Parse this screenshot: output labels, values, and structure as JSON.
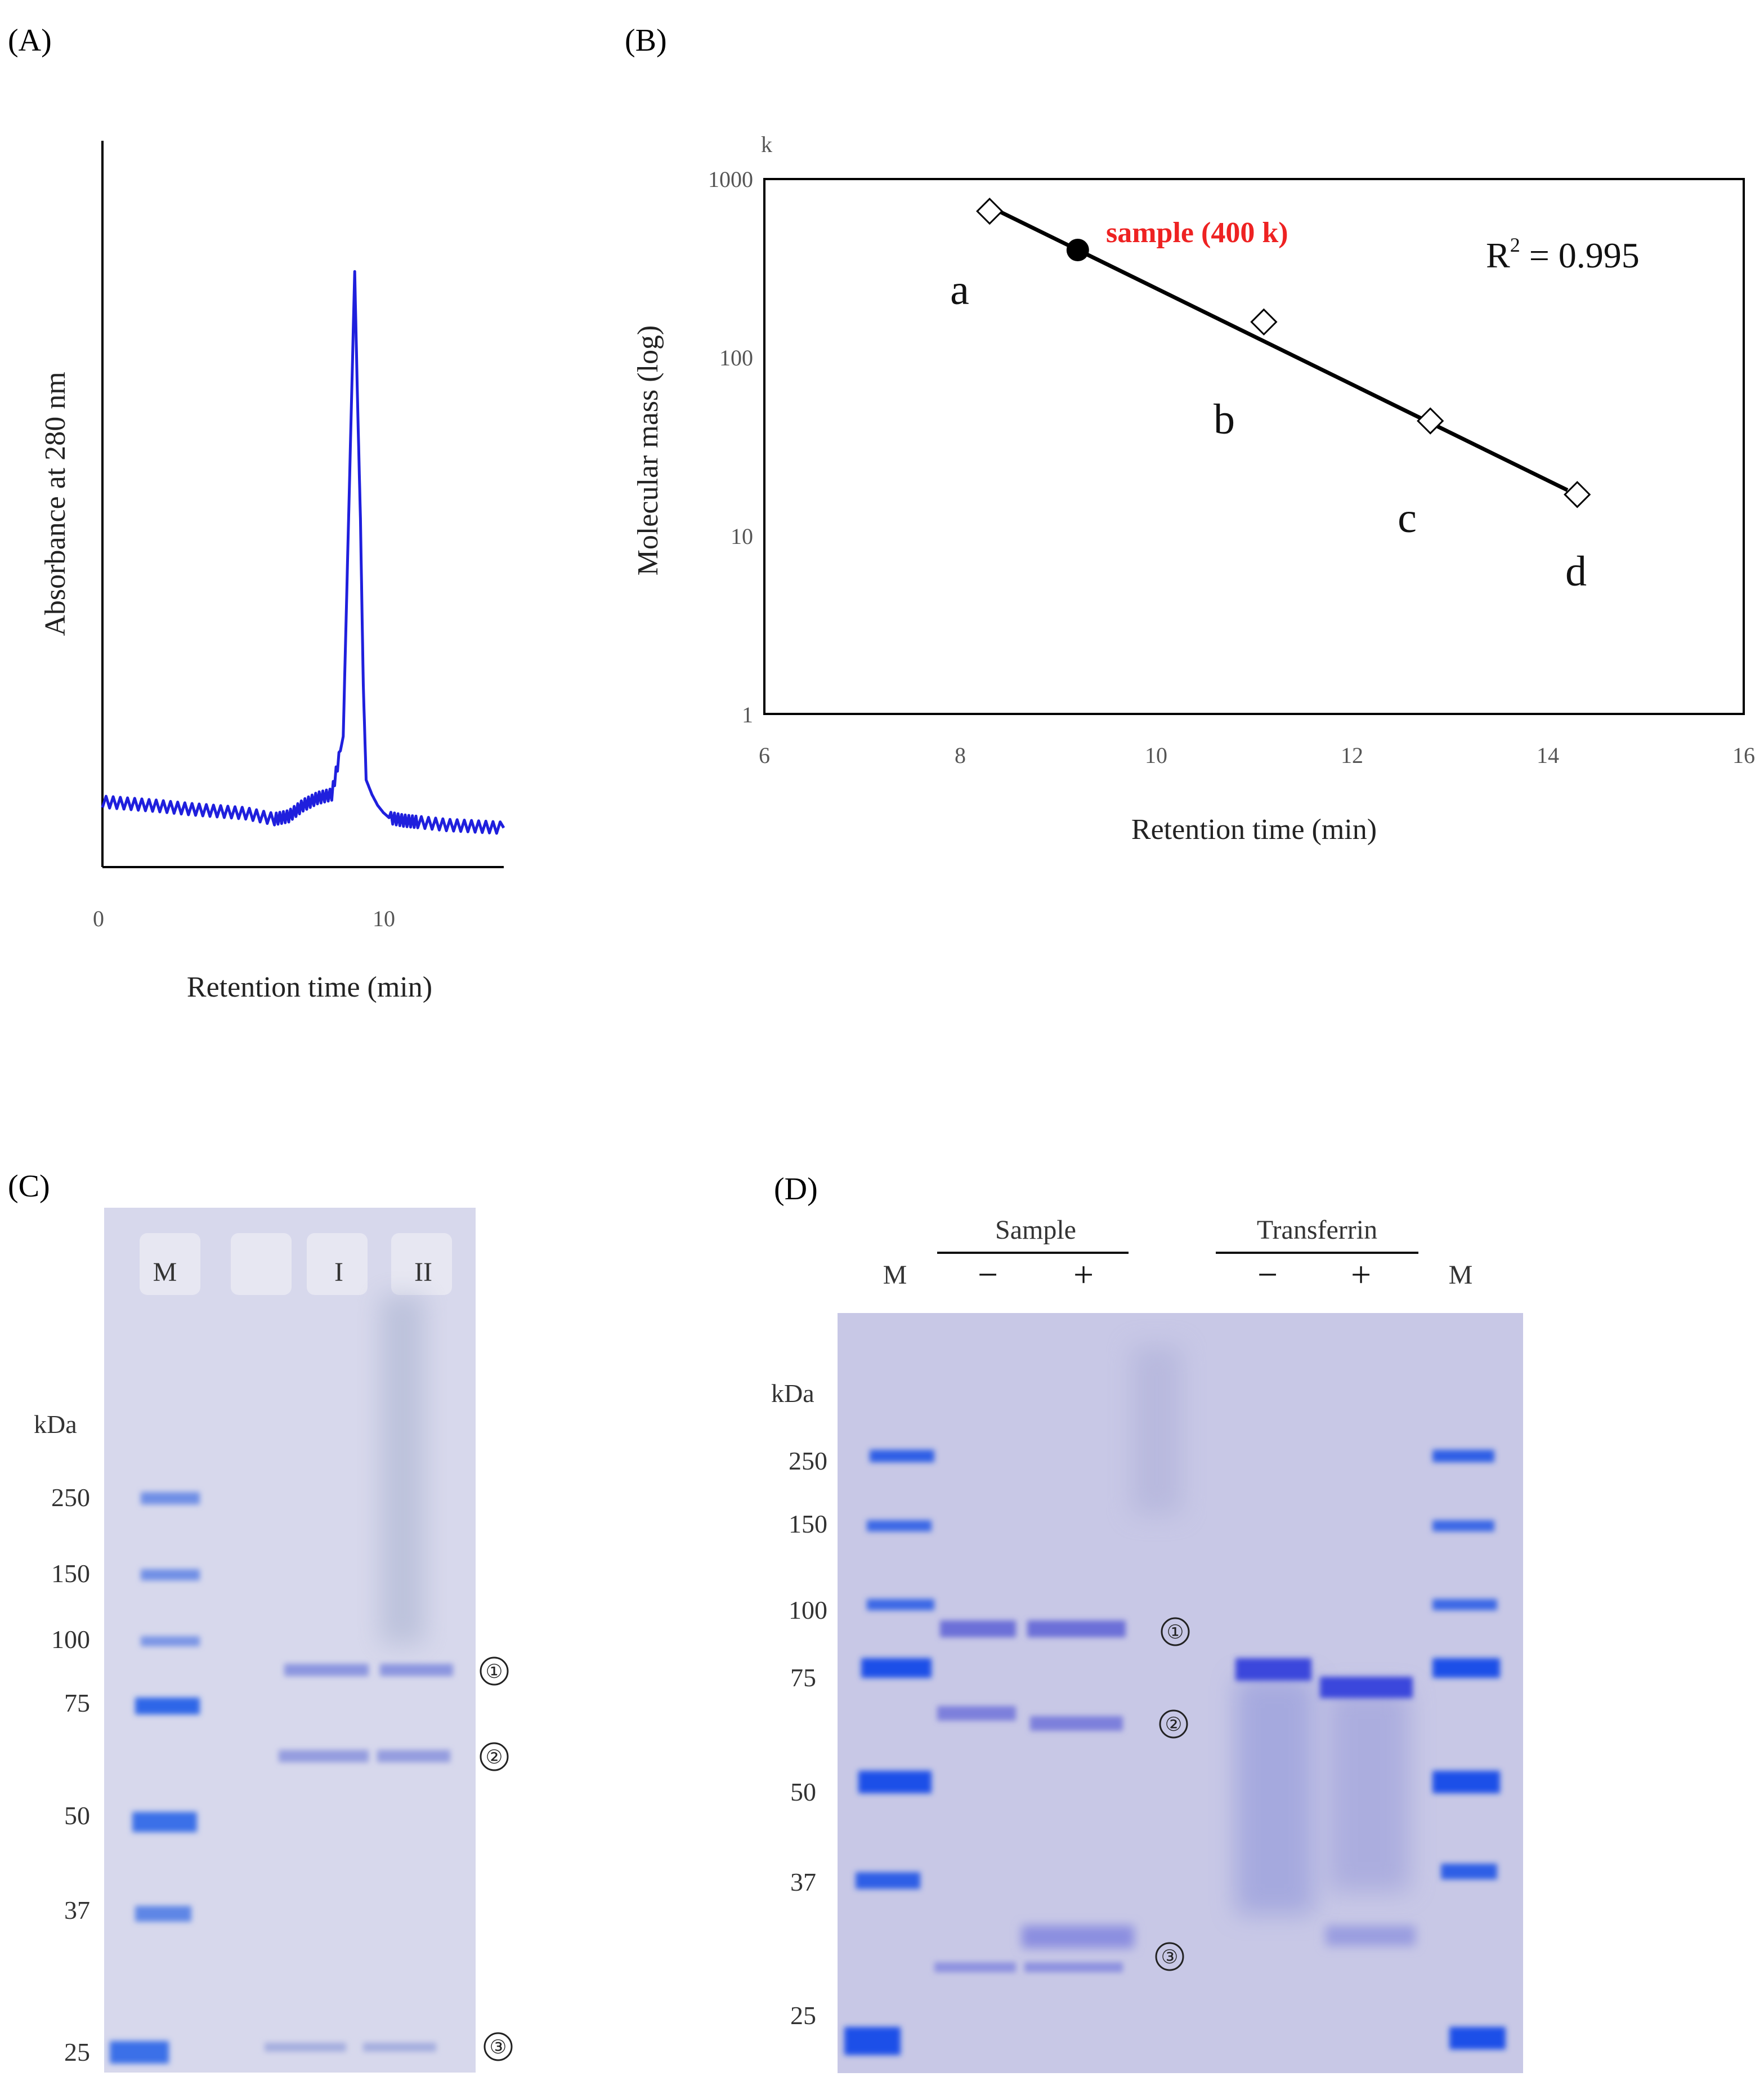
{
  "panelA": {
    "label": "(A)",
    "chart_data": {
      "type": "line",
      "title": "",
      "xlabel": "Retention time (min)",
      "ylabel": "Absorbance at 280 nm",
      "xlim": [
        0,
        14
      ],
      "ylim": [
        0,
        1
      ],
      "x_ticks": [
        "0",
        "10"
      ],
      "series": [
        {
          "name": "A280",
          "color": "#1f1fdd",
          "x": [
            0,
            1,
            2,
            3,
            4,
            5,
            6,
            6.5,
            7,
            7.5,
            8,
            8.4,
            8.6,
            8.8,
            8.9,
            9.0,
            9.1,
            9.2,
            9.4,
            9.6,
            9.8,
            10,
            10.5,
            11,
            12,
            13,
            14
          ],
          "y": [
            0.09,
            0.087,
            0.084,
            0.08,
            0.077,
            0.074,
            0.066,
            0.07,
            0.085,
            0.095,
            0.1,
            0.18,
            0.5,
            0.82,
            0.64,
            0.48,
            0.25,
            0.12,
            0.1,
            0.085,
            0.075,
            0.068,
            0.064,
            0.062,
            0.058,
            0.056,
            0.054
          ]
        }
      ]
    }
  },
  "panelB": {
    "label": "(B)",
    "chart_data": {
      "type": "scatter",
      "title": "",
      "xlabel": "Retention time (min)",
      "ylabel": "Molecular mass (log)",
      "y_unit": "k",
      "xlim": [
        6,
        16
      ],
      "ylim": [
        1,
        1000
      ],
      "y_scale": "log",
      "x_ticks": [
        "6",
        "8",
        "10",
        "12",
        "14",
        "16"
      ],
      "y_ticks": [
        "1",
        "10",
        "100",
        "1000"
      ],
      "standards": [
        {
          "name": "a",
          "x": 8.3,
          "y": 660
        },
        {
          "name": "b",
          "x": 11.1,
          "y": 158
        },
        {
          "name": "c",
          "x": 12.8,
          "y": 44
        },
        {
          "name": "d",
          "x": 14.3,
          "y": 17
        }
      ],
      "sample": {
        "label": "sample (400 k)",
        "x": 9.2,
        "y": 400,
        "color": "#ee2222"
      },
      "fit": {
        "x": [
          8.3,
          14.2
        ],
        "y": [
          700,
          18
        ]
      },
      "annotation": "R",
      "annotation_sup": "2",
      "annotation_rest": " = 0.995"
    }
  },
  "panelC": {
    "label": "(C)",
    "lanes": [
      "M",
      "I",
      "II"
    ],
    "unit": "kDa",
    "markers": [
      "250",
      "150",
      "100",
      "75",
      "50",
      "37",
      "25"
    ],
    "bands": [
      "①",
      "②",
      "③"
    ]
  },
  "panelD": {
    "label": "(D)",
    "groups": [
      "Sample",
      "Transferrin"
    ],
    "lanes": [
      "M",
      "−",
      "+",
      "−",
      "+",
      "M"
    ],
    "unit": "kDa",
    "markers": [
      "250",
      "150",
      "100",
      "75",
      "50",
      "37",
      "25"
    ],
    "bands": [
      "①",
      "②",
      "③"
    ]
  }
}
